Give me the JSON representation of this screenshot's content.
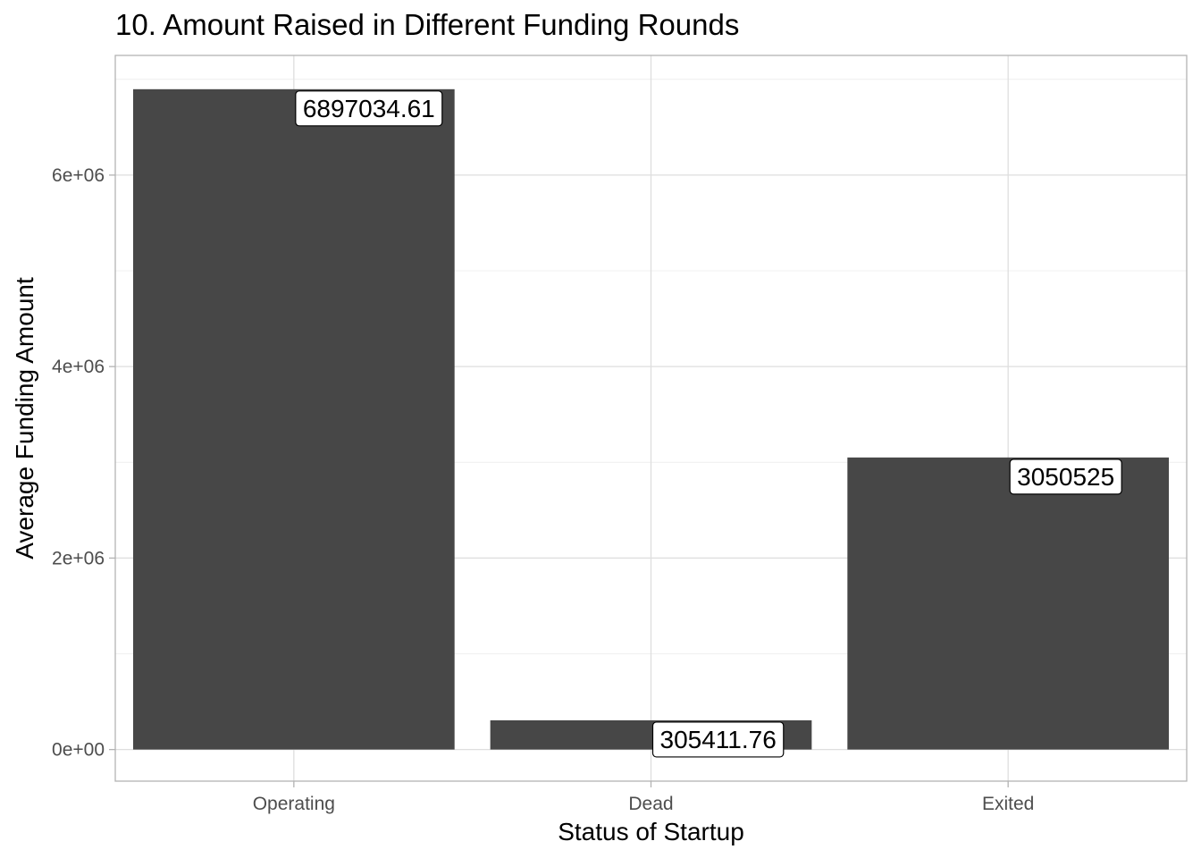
{
  "chart_data": {
    "type": "bar",
    "title": "10. Amount Raised in Different Funding Rounds",
    "xlabel": "Status of Startup",
    "ylabel": "Average Funding Amount",
    "categories": [
      "Operating",
      "Dead",
      "Exited"
    ],
    "values": [
      6897034.61,
      305411.76,
      3050525
    ],
    "data_labels": [
      "6897034.61",
      "305411.76",
      "3050525"
    ],
    "ylim": [
      -330000,
      7250000
    ],
    "y_ticks": [
      {
        "value": 0,
        "label": "0e+00"
      },
      {
        "value": 2000000,
        "label": "2e+06"
      },
      {
        "value": 4000000,
        "label": "4e+06"
      },
      {
        "value": 6000000,
        "label": "6e+06"
      }
    ],
    "y_minor_ticks": [
      1000000,
      3000000,
      5000000,
      7000000
    ],
    "grid": true,
    "legend": "none",
    "colors": {
      "bar": "#474747",
      "panel_border": "#b3b3b3",
      "grid_major": "#dedede",
      "grid_minor": "#ebebeb",
      "tick_text": "#4d4d4d"
    }
  }
}
